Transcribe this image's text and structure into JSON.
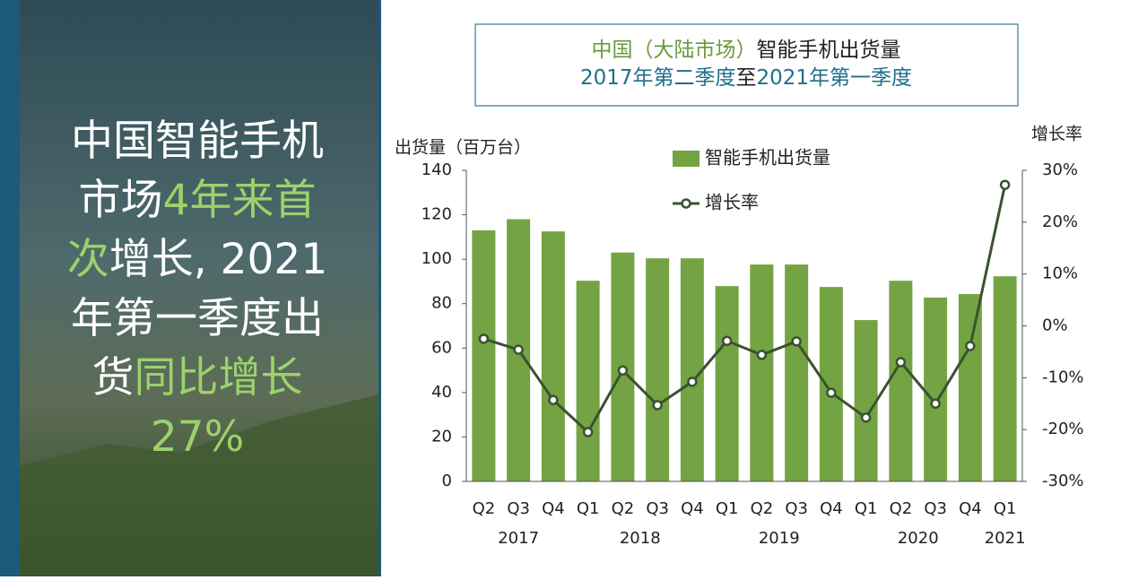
{
  "headline": {
    "lines": [
      [
        {
          "text": "中国智能手机",
          "highlight": false
        }
      ],
      [
        {
          "text": "市场",
          "highlight": false
        },
        {
          "text": "4年来首",
          "highlight": true
        }
      ],
      [
        {
          "text": "次",
          "highlight": true
        },
        {
          "text": "增长, 2021",
          "highlight": false
        }
      ],
      [
        {
          "text": "年第一季度出",
          "highlight": false
        }
      ],
      [
        {
          "text": "货",
          "highlight": false
        },
        {
          "text": "同比增长",
          "highlight": true
        }
      ],
      [
        {
          "text": "27%",
          "highlight": true
        }
      ]
    ]
  },
  "chart_data": {
    "type": "bar_line",
    "title": [
      [
        {
          "text": "中国（大陆市场）",
          "color": "#6a9a3c"
        },
        {
          "text": "智能手机出货量",
          "color": "#222222"
        }
      ],
      [
        {
          "text": "2017年第二季度",
          "color": "#1f6f8b"
        },
        {
          "text": "至",
          "color": "#222222"
        },
        {
          "text": "2021年第一季度",
          "color": "#1f6f8b"
        }
      ]
    ],
    "y_label": "出货量（百万台）",
    "y2_label": "增长率",
    "categories": [
      "Q2",
      "Q3",
      "Q4",
      "Q1",
      "Q2",
      "Q3",
      "Q4",
      "Q1",
      "Q2",
      "Q3",
      "Q4",
      "Q1",
      "Q2",
      "Q3",
      "Q4",
      "Q1"
    ],
    "years": [
      "2017",
      null,
      null,
      "2018",
      null,
      null,
      null,
      "2019",
      null,
      null,
      null,
      "2020",
      null,
      null,
      null,
      "2021"
    ],
    "series": [
      {
        "name": "智能手机出货量",
        "type": "bar",
        "color": "#74a343",
        "values": [
          113,
          118,
          112.5,
          90.3,
          103,
          100.4,
          100.4,
          87.9,
          97.6,
          97.6,
          87.5,
          72.6,
          90.3,
          82.7,
          84.3,
          92.3
        ]
      },
      {
        "name": "增长率",
        "type": "line",
        "axis": "y2",
        "color": "#3b5230",
        "values": [
          -2.5,
          -4.6,
          -14.3,
          -20.5,
          -8.6,
          -15.3,
          -10.8,
          -2.9,
          -5.6,
          -3,
          -12.9,
          -17.7,
          -7,
          -15,
          -3.9,
          27.2
        ]
      }
    ],
    "ylim": [
      0,
      140
    ],
    "yticks": [
      0,
      20,
      40,
      60,
      80,
      100,
      120,
      140
    ],
    "y2lim": [
      -30,
      30
    ],
    "y2ticks": [
      {
        "value": -30,
        "label": "-30%"
      },
      {
        "value": -20,
        "label": "-20%"
      },
      {
        "value": -10,
        "label": "-10%"
      },
      {
        "value": 0,
        "label": "0%"
      },
      {
        "value": 10,
        "label": "10%"
      },
      {
        "value": 20,
        "label": "20%"
      },
      {
        "value": 30,
        "label": "30%"
      }
    ]
  }
}
